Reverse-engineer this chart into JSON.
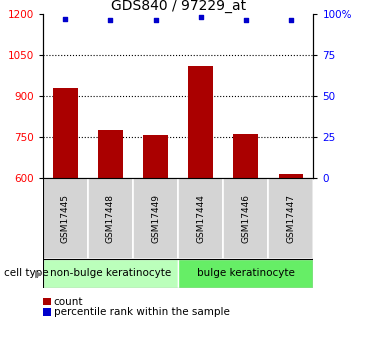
{
  "title": "GDS840 / 97229_at",
  "samples": [
    "GSM17445",
    "GSM17448",
    "GSM17449",
    "GSM17444",
    "GSM17446",
    "GSM17447"
  ],
  "counts": [
    930,
    775,
    755,
    1010,
    760,
    615
  ],
  "percentiles": [
    97,
    96,
    96,
    98,
    96,
    96
  ],
  "ylim_left": [
    600,
    1200
  ],
  "ylim_right": [
    0,
    100
  ],
  "yticks_left": [
    600,
    750,
    900,
    1050,
    1200
  ],
  "yticks_right": [
    0,
    25,
    50,
    75,
    100
  ],
  "bar_color": "#aa0000",
  "dot_color": "#0000cc",
  "groups": [
    {
      "label": "non-bulge keratinocyte",
      "indices": [
        0,
        1,
        2
      ],
      "color": "#bbffbb"
    },
    {
      "label": "bulge keratinocyte",
      "indices": [
        3,
        4,
        5
      ],
      "color": "#66ee66"
    }
  ],
  "cell_type_label": "cell type",
  "legend_count": "count",
  "legend_percentile": "percentile rank within the sample",
  "title_fontsize": 10,
  "tick_fontsize": 7.5,
  "sample_fontsize": 6.5,
  "cell_fontsize": 7.5,
  "legend_fontsize": 7.5,
  "bar_width": 0.55,
  "gray_box_color": "#d4d4d4"
}
